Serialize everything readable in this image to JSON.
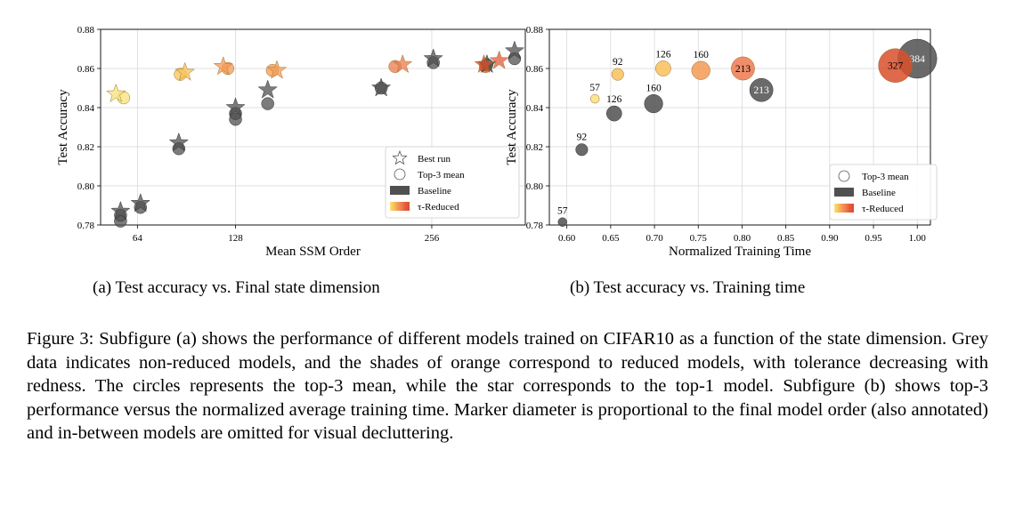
{
  "palette": {
    "baseline": "#505050",
    "reduced_scale": [
      "#f9e27a",
      "#f8c15a",
      "#f49a55",
      "#ee7a4f",
      "#e35a3a",
      "#d84f2c"
    ]
  },
  "chart_data": [
    {
      "id": "a",
      "type": "scatter",
      "caption": "(a) Test accuracy vs. Final state dimension",
      "xlabel": "Mean SSM Order",
      "ylabel": "Test Accuracy",
      "xlim": [
        40,
        317
      ],
      "ylim": [
        0.78,
        0.88
      ],
      "xticks": [
        64,
        128,
        256
      ],
      "yticks": [
        0.78,
        0.8,
        0.82,
        0.84,
        0.86,
        0.88
      ],
      "ytick_labels": [
        "0.78",
        "0.80",
        "0.82",
        "0.84",
        "0.86",
        "0.88"
      ],
      "legend": {
        "position": "lower-right",
        "entries": [
          "Best run",
          "Top-3 mean",
          "Baseline",
          "τ-Reduced"
        ]
      },
      "series": [
        {
          "name": "Baseline best run",
          "marker": "star",
          "group": "baseline",
          "points": [
            [
              53,
              0.787
            ],
            [
              66,
              0.791
            ],
            [
              91,
              0.822
            ],
            [
              128,
              0.84
            ],
            [
              149,
              0.849
            ],
            [
              223,
              0.85
            ],
            [
              257,
              0.865
            ],
            [
              292,
              0.862
            ],
            [
              310,
              0.869
            ]
          ]
        },
        {
          "name": "Baseline top-3 mean",
          "marker": "circle",
          "group": "baseline",
          "points": [
            [
              53,
              0.782
            ],
            [
              53,
              0.785
            ],
            [
              66,
              0.789
            ],
            [
              91,
              0.819
            ],
            [
              128,
              0.834
            ],
            [
              128,
              0.837
            ],
            [
              149,
              0.842
            ],
            [
              223,
              0.85
            ],
            [
              257,
              0.863
            ],
            [
              292,
              0.862
            ],
            [
              310,
              0.865
            ]
          ]
        },
        {
          "name": "τ-Reduced best run",
          "marker": "star",
          "group": "reduced",
          "points": [
            [
              50,
              0.847,
              0
            ],
            [
              95,
              0.858,
              1
            ],
            [
              120,
              0.861,
              2
            ],
            [
              155,
              0.859,
              2
            ],
            [
              237,
              0.862,
              3
            ],
            [
              290,
              0.862,
              5
            ],
            [
              300,
              0.864,
              4
            ]
          ]
        },
        {
          "name": "τ-Reduced top-3 mean",
          "marker": "circle",
          "group": "reduced",
          "points": [
            [
              55,
              0.845,
              0
            ],
            [
              92,
              0.857,
              1
            ],
            [
              123,
              0.86,
              2
            ],
            [
              152,
              0.859,
              2
            ],
            [
              232,
              0.861,
              3
            ],
            [
              291,
              0.861,
              5
            ]
          ]
        }
      ]
    },
    {
      "id": "b",
      "type": "scatter",
      "caption": "(b) Test accuracy vs. Training time",
      "xlabel": "Normalized Training Time",
      "ylabel": "Test Accuracy",
      "xlim": [
        0.58,
        1.015
      ],
      "ylim": [
        0.78,
        0.88
      ],
      "xticks": [
        0.6,
        0.65,
        0.7,
        0.75,
        0.8,
        0.85,
        0.9,
        0.95,
        1.0
      ],
      "xtick_labels": [
        "0.60",
        "0.65",
        "0.70",
        "0.75",
        "0.80",
        "0.85",
        "0.90",
        "0.95",
        "1.00"
      ],
      "yticks": [
        0.78,
        0.8,
        0.82,
        0.84,
        0.86,
        0.88
      ],
      "ytick_labels": [
        "0.78",
        "0.80",
        "0.82",
        "0.84",
        "0.86",
        "0.88"
      ],
      "legend": {
        "position": "lower-right",
        "entries": [
          "Top-3 mean",
          "Baseline",
          "τ-Reduced"
        ]
      },
      "series": [
        {
          "name": "Baseline top-3 mean",
          "marker": "circle",
          "group": "baseline",
          "points": [
            {
              "x": 0.595,
              "y": 0.7815,
              "order": 57,
              "label": "57",
              "label_pos": "above"
            },
            {
              "x": 0.617,
              "y": 0.8185,
              "order": 92,
              "label": "92",
              "label_pos": "above"
            },
            {
              "x": 0.654,
              "y": 0.837,
              "order": 126,
              "label": "126",
              "label_pos": "above"
            },
            {
              "x": 0.699,
              "y": 0.842,
              "order": 160,
              "label": "160",
              "label_pos": "above"
            },
            {
              "x": 0.822,
              "y": 0.849,
              "order": 213,
              "label": "213",
              "label_pos": "center"
            },
            {
              "x": 1.0,
              "y": 0.865,
              "order": 384,
              "label": "384",
              "label_pos": "center"
            }
          ]
        },
        {
          "name": "τ-Reduced top-3 mean",
          "marker": "circle",
          "group": "reduced",
          "points": [
            {
              "x": 0.632,
              "y": 0.8445,
              "order": 57,
              "label": "57",
              "label_pos": "above",
              "shade": 0
            },
            {
              "x": 0.658,
              "y": 0.857,
              "order": 92,
              "label": "92",
              "label_pos": "above",
              "shade": 1
            },
            {
              "x": 0.71,
              "y": 0.86,
              "order": 126,
              "label": "126",
              "label_pos": "above",
              "shade": 1
            },
            {
              "x": 0.753,
              "y": 0.859,
              "order": 160,
              "label": "160",
              "label_pos": "above",
              "shade": 2
            },
            {
              "x": 0.801,
              "y": 0.86,
              "order": 213,
              "label": "213",
              "label_pos": "center",
              "shade": 3
            },
            {
              "x": 0.975,
              "y": 0.8615,
              "order": 327,
              "label": "327",
              "label_pos": "center",
              "shade": 5
            }
          ]
        }
      ]
    }
  ],
  "figure_caption": "Figure 3: Subfigure (a) shows the performance of different models trained on CIFAR10 as a function of the state dimension. Grey data indicates non-reduced models, and the shades of orange correspond to reduced models, with tolerance decreasing with redness. The circles represents the top-3 mean, while the star corresponds to the top-1 model. Subfigure (b) shows top-3 performance versus the normalized average training time. Marker diameter is proportional to the final model order (also annotated) and in-between models are omitted for visual decluttering."
}
